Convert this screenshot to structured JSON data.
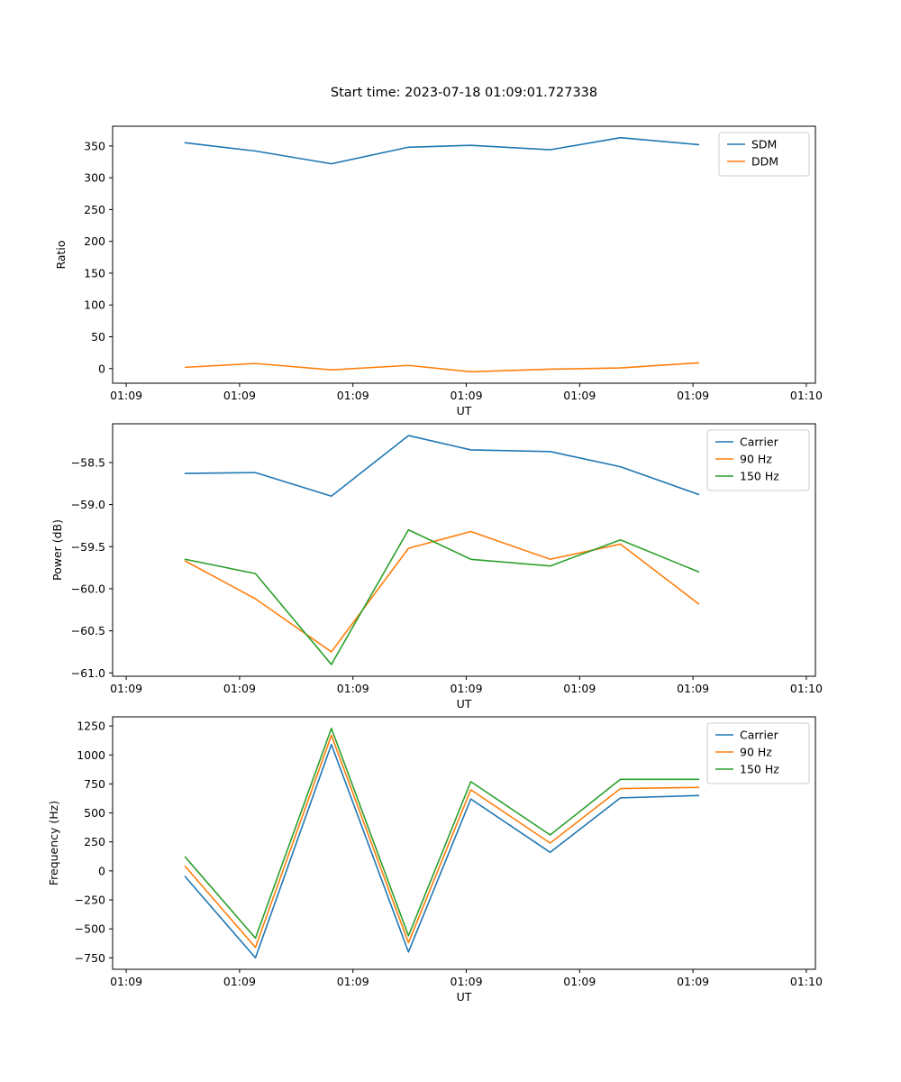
{
  "figure_title": "Start time: 2023-07-18 01:09:01.727338",
  "colors": {
    "blue": "#1f77b4",
    "orange": "#ff7f0e",
    "green": "#2ca02c"
  },
  "chart_data": [
    {
      "type": "line",
      "title": "Start time: 2023-07-18 01:09:01.727338",
      "xlabel": "UT",
      "ylabel": "Ratio",
      "grid": false,
      "legend_position": "upper right",
      "x": [
        5.2,
        11.4,
        18.1,
        24.9,
        30.4,
        37.4,
        43.6,
        50.5
      ],
      "xlim": [
        -1.2,
        60.8
      ],
      "xticks": [
        0,
        10,
        20,
        30,
        40,
        50,
        60
      ],
      "xticklabels": [
        "01:09",
        "01:09",
        "01:09",
        "01:09",
        "01:09",
        "01:09",
        "01:10"
      ],
      "ylim": [
        -23,
        381
      ],
      "yticks": [
        0,
        50,
        100,
        150,
        200,
        250,
        300,
        350
      ],
      "yticklabels": [
        "0",
        "50",
        "100",
        "150",
        "200",
        "250",
        "300",
        "350"
      ],
      "series": [
        {
          "name": "SDM",
          "color": "#1f77b4",
          "values": [
            355,
            342,
            322,
            348,
            351,
            344,
            363,
            352
          ]
        },
        {
          "name": "DDM",
          "color": "#ff7f0e",
          "values": [
            2,
            8,
            -2,
            5,
            -5,
            -1,
            1,
            9
          ]
        }
      ]
    },
    {
      "type": "line",
      "title": "",
      "xlabel": "UT",
      "ylabel": "Power (dB)",
      "grid": false,
      "legend_position": "upper right",
      "x": [
        5.2,
        11.4,
        18.1,
        24.9,
        30.4,
        37.4,
        43.6,
        50.5
      ],
      "xlim": [
        -1.2,
        60.8
      ],
      "xticks": [
        0,
        10,
        20,
        30,
        40,
        50,
        60
      ],
      "xticklabels": [
        "01:09",
        "01:09",
        "01:09",
        "01:09",
        "01:09",
        "01:09",
        "01:10"
      ],
      "ylim": [
        -61.04,
        -58.04
      ],
      "yticks": [
        -61.0,
        -60.5,
        -60.0,
        -59.5,
        -59.0,
        -58.5
      ],
      "yticklabels": [
        "−61.0",
        "−60.5",
        "−60.0",
        "−59.5",
        "−59.0",
        "−58.5"
      ],
      "series": [
        {
          "name": "Carrier",
          "color": "#1f77b4",
          "values": [
            -58.63,
            -58.62,
            -58.9,
            -58.18,
            -58.35,
            -58.37,
            -58.55,
            -58.88
          ]
        },
        {
          "name": "90 Hz",
          "color": "#ff7f0e",
          "values": [
            -59.67,
            -60.12,
            -60.75,
            -59.52,
            -59.32,
            -59.65,
            -59.47,
            -60.18
          ]
        },
        {
          "name": "150 Hz",
          "color": "#2ca02c",
          "values": [
            -59.65,
            -59.82,
            -60.9,
            -59.3,
            -59.65,
            -59.73,
            -59.42,
            -59.8
          ]
        }
      ]
    },
    {
      "type": "line",
      "title": "",
      "xlabel": "UT",
      "ylabel": "Frequency (Hz)",
      "grid": false,
      "legend_position": "upper right",
      "x": [
        5.2,
        11.4,
        18.1,
        24.9,
        30.4,
        37.4,
        43.6,
        50.5
      ],
      "xlim": [
        -1.2,
        60.8
      ],
      "xticks": [
        0,
        10,
        20,
        30,
        40,
        50,
        60
      ],
      "xticklabels": [
        "01:09",
        "01:09",
        "01:09",
        "01:09",
        "01:09",
        "01:09",
        "01:10"
      ],
      "ylim": [
        -849,
        1329
      ],
      "yticks": [
        -750,
        -500,
        -250,
        0,
        250,
        500,
        750,
        1000,
        1250
      ],
      "yticklabels": [
        "−750",
        "−500",
        "−250",
        "0",
        "250",
        "500",
        "750",
        "1000",
        "1250"
      ],
      "series": [
        {
          "name": "Carrier",
          "color": "#1f77b4",
          "values": [
            -50,
            -750,
            1090,
            -700,
            620,
            160,
            630,
            650
          ]
        },
        {
          "name": "90 Hz",
          "color": "#ff7f0e",
          "values": [
            40,
            -660,
            1170,
            -620,
            700,
            240,
            710,
            720
          ]
        },
        {
          "name": "150 Hz",
          "color": "#2ca02c",
          "values": [
            120,
            -580,
            1230,
            -560,
            770,
            310,
            790,
            790
          ]
        }
      ]
    }
  ]
}
